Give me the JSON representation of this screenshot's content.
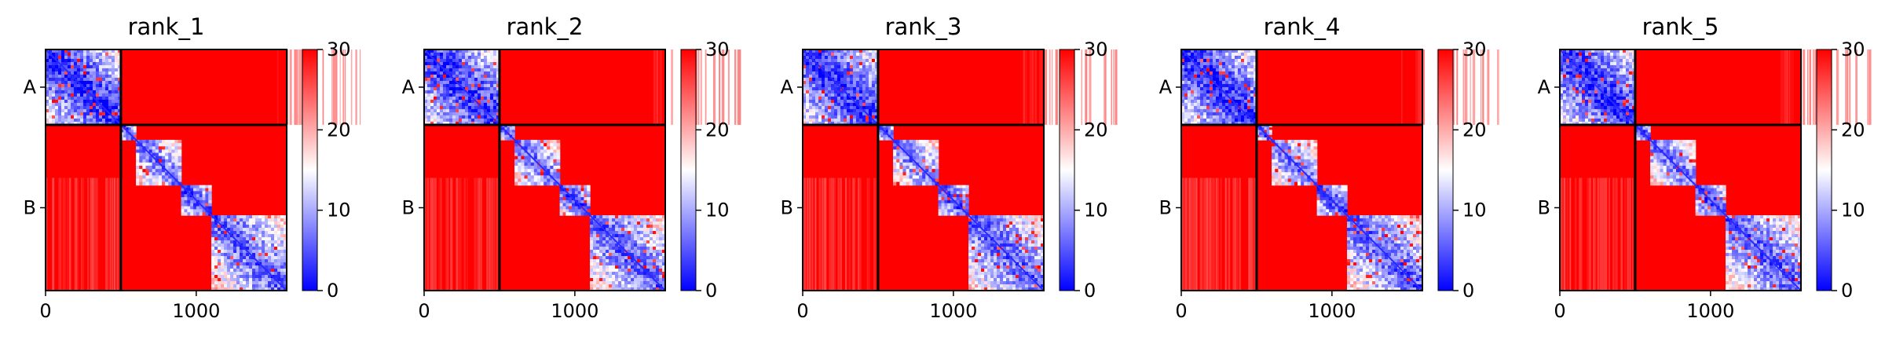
{
  "chart_data": [
    {
      "type": "heatmap",
      "title": "rank_1",
      "xticks": [
        0,
        1000
      ],
      "ylabels": [
        "A",
        "B"
      ],
      "chain_lengths": {
        "A": 500,
        "B": 1100
      },
      "xlim": [
        0,
        1600
      ],
      "colorbar": {
        "ticks": [
          0,
          10,
          20,
          30
        ],
        "range": [
          0,
          30
        ],
        "cmap": "bwr"
      }
    },
    {
      "type": "heatmap",
      "title": "rank_2",
      "xticks": [
        0,
        1000
      ],
      "ylabels": [
        "A",
        "B"
      ],
      "chain_lengths": {
        "A": 500,
        "B": 1100
      },
      "xlim": [
        0,
        1600
      ],
      "colorbar": {
        "ticks": [
          0,
          10,
          20,
          30
        ],
        "range": [
          0,
          30
        ],
        "cmap": "bwr"
      }
    },
    {
      "type": "heatmap",
      "title": "rank_3",
      "xticks": [
        0,
        1000
      ],
      "ylabels": [
        "A",
        "B"
      ],
      "chain_lengths": {
        "A": 500,
        "B": 1100
      },
      "xlim": [
        0,
        1600
      ],
      "colorbar": {
        "ticks": [
          0,
          10,
          20,
          30
        ],
        "range": [
          0,
          30
        ],
        "cmap": "bwr"
      }
    },
    {
      "type": "heatmap",
      "title": "rank_4",
      "xticks": [
        0,
        1000
      ],
      "ylabels": [
        "A",
        "B"
      ],
      "chain_lengths": {
        "A": 500,
        "B": 1100
      },
      "xlim": [
        0,
        1600
      ],
      "colorbar": {
        "ticks": [
          0,
          10,
          20,
          30
        ],
        "range": [
          0,
          30
        ],
        "cmap": "bwr"
      }
    },
    {
      "type": "heatmap",
      "title": "rank_5",
      "xticks": [
        0,
        1000
      ],
      "ylabels": [
        "A",
        "B"
      ],
      "chain_lengths": {
        "A": 500,
        "B": 1100
      },
      "xlim": [
        0,
        1600
      ],
      "colorbar": {
        "ticks": [
          0,
          10,
          20,
          30
        ],
        "range": [
          0,
          30
        ],
        "cmap": "bwr"
      }
    }
  ],
  "colors": {
    "low": "#0000ff",
    "mid": "#ffffff",
    "high": "#ff0000"
  }
}
